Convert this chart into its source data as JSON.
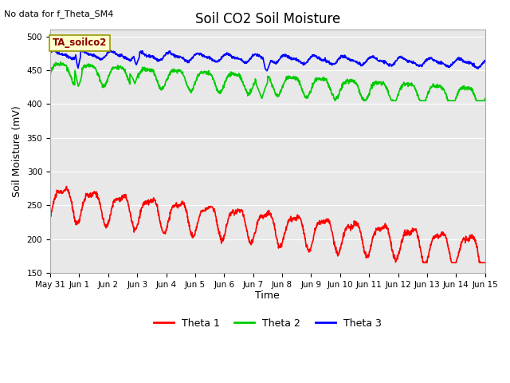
{
  "title": "Soil CO2 Soil Moisture",
  "ylabel": "Soil Moisture (mV)",
  "xlabel": "Time",
  "no_data_text": "No data for f_Theta_SM4",
  "annotation_text": "TA_soilco2",
  "ylim": [
    150,
    510
  ],
  "yticks": [
    150,
    200,
    250,
    300,
    350,
    400,
    450,
    500
  ],
  "x_tick_labels": [
    "May 31",
    "Jun 1",
    "Jun 2",
    "Jun 3",
    "Jun 4",
    "Jun 5",
    "Jun 6",
    "Jun 7",
    "Jun 8",
    "Jun 9",
    "Jun 10",
    "Jun 11",
    "Jun 12",
    "Jun 13",
    "Jun 14",
    "Jun 15"
  ],
  "bg_color": "#e8e8e8",
  "legend_entries": [
    "Theta 1",
    "Theta 2",
    "Theta 3"
  ],
  "legend_colors": [
    "#ff0000",
    "#00cc00",
    "#0000ff"
  ],
  "line_width": 1.2
}
